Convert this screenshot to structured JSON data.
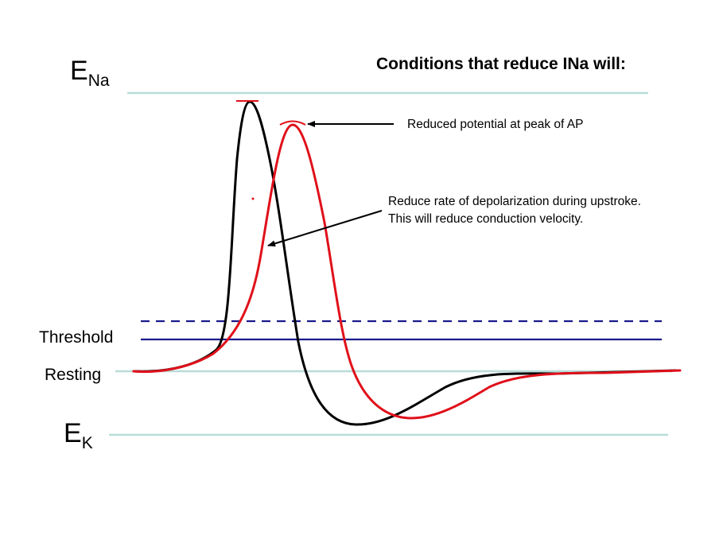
{
  "title": "Conditions that reduce INa will:",
  "labels": {
    "ena_main": "E",
    "ena_sub": "Na",
    "ek_main": "E",
    "ek_sub": "K",
    "threshold": "Threshold",
    "resting": "Resting"
  },
  "annotations": {
    "peak": "Reduced potential at peak of AP",
    "upstroke_line1": "Reduce rate of depolarization during upstroke.",
    "upstroke_line2": "This will reduce conduction velocity."
  },
  "colors": {
    "reference_line": "#b9dcd8",
    "threshold_line": "#1a1a8c",
    "normal_ap": "#000000",
    "reduced_ap": "#e0101a",
    "arrow": "#000000"
  }
}
